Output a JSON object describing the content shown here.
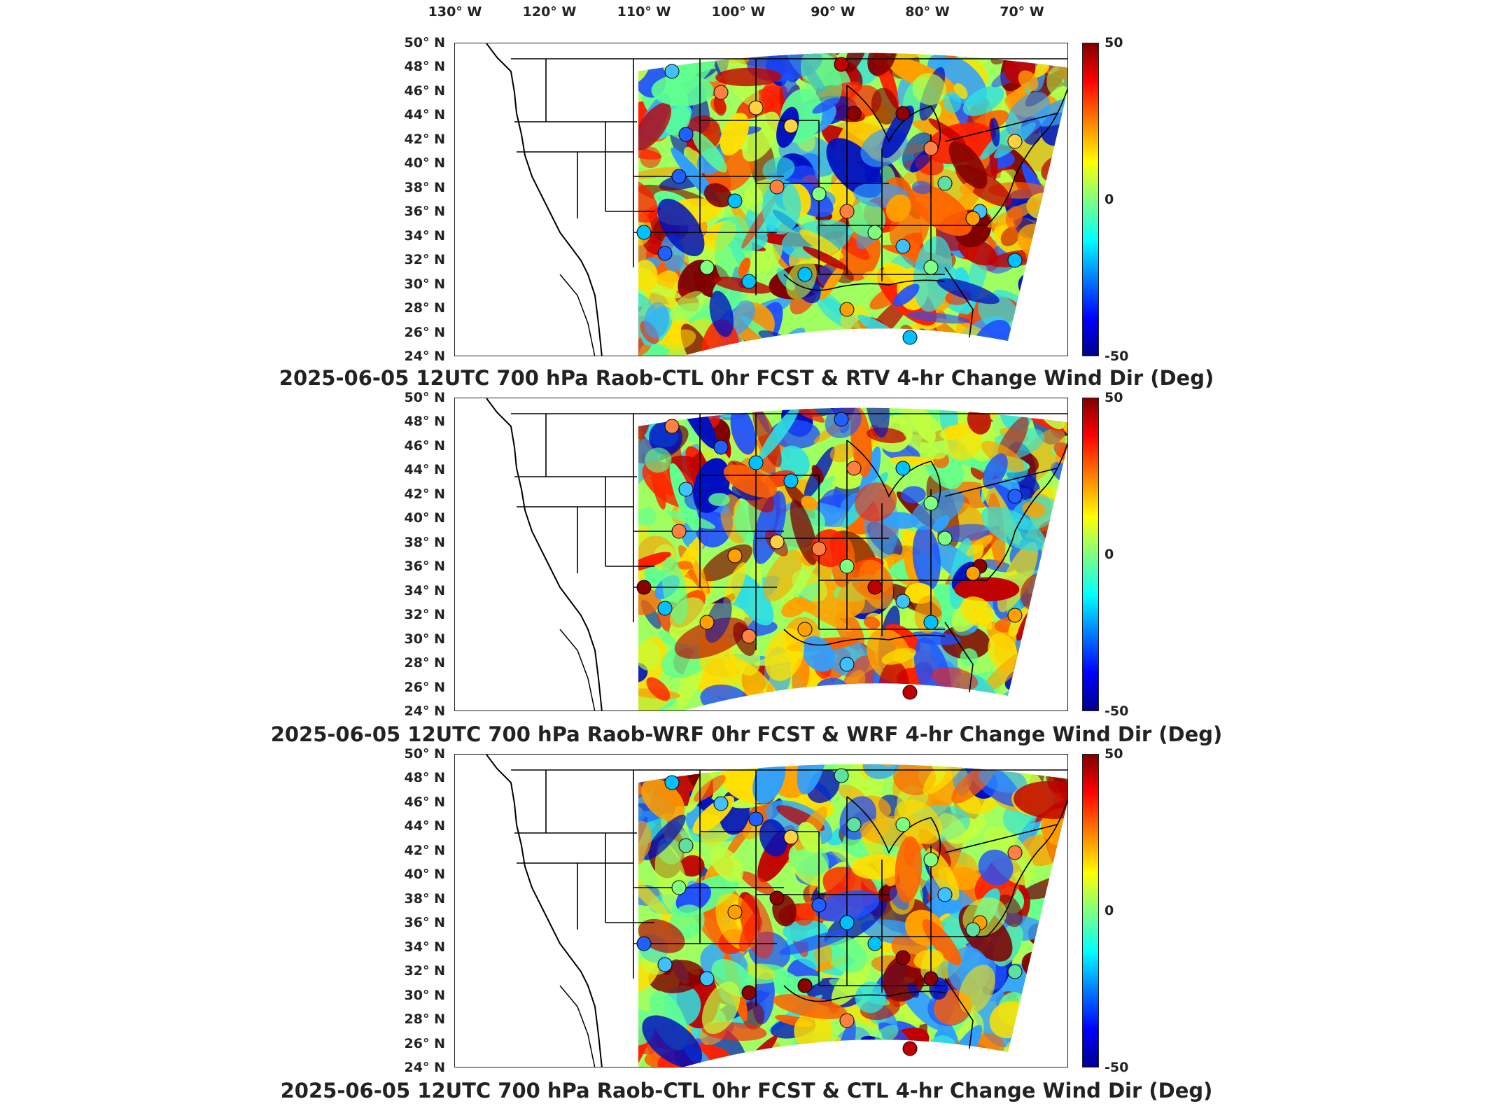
{
  "longitude_labels": [
    "130° W",
    "120° W",
    "110° W",
    "100° W",
    "90° W",
    "80° W",
    "70° W"
  ],
  "latitude_labels": [
    "50° N",
    "48° N",
    "46° N",
    "44° N",
    "42° N",
    "40° N",
    "38° N",
    "36° N",
    "34° N",
    "32° N",
    "30° N",
    "28° N",
    "26° N",
    "24° N"
  ],
  "colorbar": {
    "max_label": "50",
    "mid_label": "0",
    "min_label": "-50",
    "colormap": "jet"
  },
  "panels": [
    {
      "title": "2025-06-05 12UTC 700 hPa Raob-CTL 0hr FCST & RTV 4-hr Change Wind Dir (Deg)"
    },
    {
      "title": "2025-06-05 12UTC 700 hPa Raob-WRF 0hr FCST & WRF 4-hr Change Wind Dir (Deg)"
    },
    {
      "title": "2025-06-05 12UTC 700 hPa Raob-CTL 0hr FCST & CTL 4-hr Change Wind Dir (Deg)"
    }
  ],
  "raob_station_colors": [
    "#8b0000",
    "#40c0ff",
    "#ffd040",
    "#2060ff",
    "#ff8040",
    "#80ff80",
    "#c00000",
    "#00c0ff",
    "#ffa000",
    "#60e0a0"
  ],
  "map_colors": {
    "field_warm": "#ff3000",
    "field_cool": "#40c0ff",
    "field_mid": "#a0ff60",
    "boundary": "#000000"
  }
}
